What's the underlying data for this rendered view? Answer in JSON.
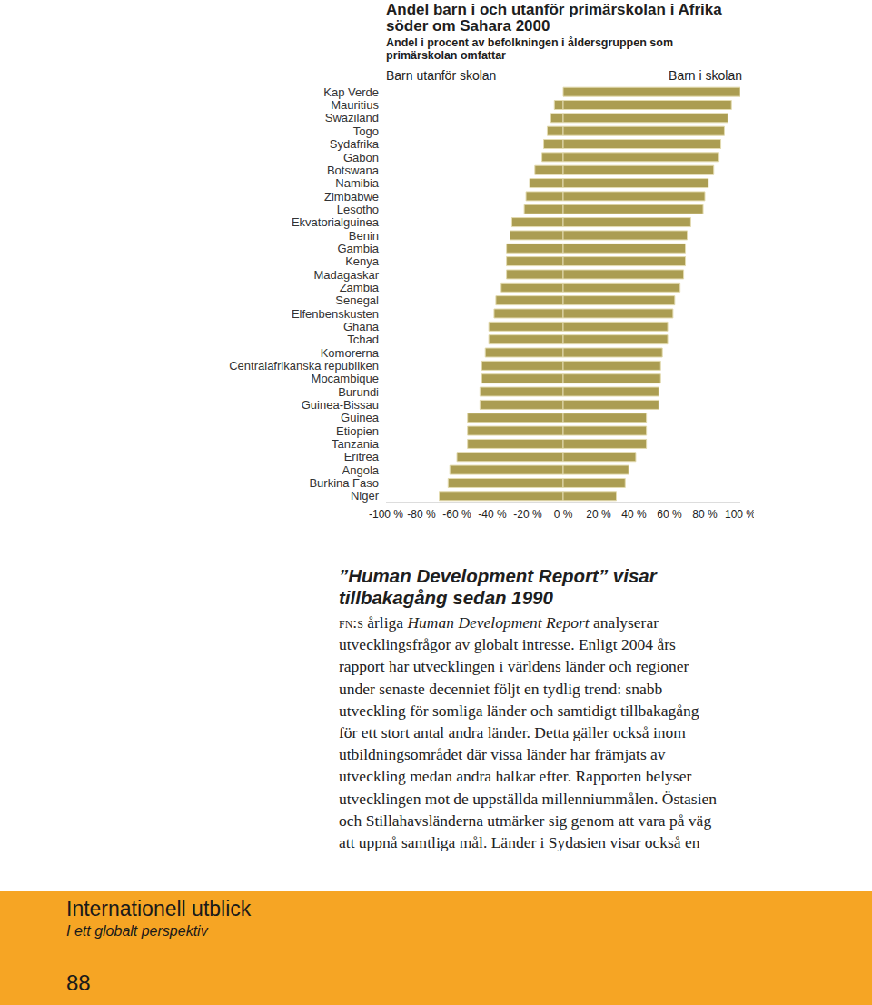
{
  "chart_data": {
    "type": "bar",
    "title": "Andel barn i och utanför primärskolan i Afrika söder om Sahara 2000",
    "subtitle": "Andel i procent av befolkningen i åldersgruppen som primärskolan omfattar",
    "orientation": "horizontal",
    "stacked": true,
    "grid": false,
    "categories": [
      "Kap Verde",
      "Mauritius",
      "Swaziland",
      "Togo",
      "Sydafrika",
      "Gabon",
      "Botswana",
      "Namibia",
      "Zimbabwe",
      "Lesotho",
      "Ekvatorialguinea",
      "Benin",
      "Gambia",
      "Kenya",
      "Madagaskar",
      "Zambia",
      "Senegal",
      "Elfenbenskusten",
      "Ghana",
      "Tchad",
      "Komorerna",
      "Centralafrikanska republiken",
      "Mocambique",
      "Burundi",
      "Guinea-Bissau",
      "Guinea",
      "Etiopien",
      "Tanzania",
      "Eritrea",
      "Angola",
      "Burkina Faso",
      "Niger"
    ],
    "series": [
      {
        "name": "Barn utanför skolan",
        "color": "#ab9d52",
        "values": [
          0,
          -5,
          -7,
          -9,
          -11,
          -12,
          -16,
          -19,
          -21,
          -22,
          -29,
          -30,
          -32,
          -32,
          -32,
          -35,
          -38,
          -39,
          -42,
          -42,
          -44,
          -46,
          -46,
          -47,
          -47,
          -54,
          -54,
          -54,
          -60,
          -64,
          -65,
          -70
        ]
      },
      {
        "name": "Barn i skolan",
        "color": "#ab9d52",
        "values": [
          100,
          95,
          93,
          91,
          89,
          88,
          85,
          82,
          80,
          79,
          72,
          70,
          69,
          69,
          68,
          66,
          63,
          62,
          59,
          59,
          56,
          55,
          55,
          54,
          54,
          47,
          47,
          47,
          41,
          37,
          35,
          30
        ]
      }
    ],
    "xlim": [
      -100,
      100
    ],
    "xticks": [
      {
        "value": -100,
        "label": "-100 %"
      },
      {
        "value": -80,
        "label": "-80 %"
      },
      {
        "value": -60,
        "label": "-60 %"
      },
      {
        "value": -40,
        "label": "-40 %"
      },
      {
        "value": -20,
        "label": "-20 %"
      },
      {
        "value": 0,
        "label": "0 %"
      },
      {
        "value": 20,
        "label": "20 %"
      },
      {
        "value": 40,
        "label": "40 %"
      },
      {
        "value": 60,
        "label": "60 %"
      },
      {
        "value": 80,
        "label": "80 %"
      },
      {
        "value": 100,
        "label": "100 %"
      }
    ]
  },
  "article": {
    "heading": [
      "”Human Development Report” visar",
      "tillbakagång sedan 1990"
    ],
    "lines": [
      [
        {
          "text": "fn:s",
          "font": "small-caps"
        },
        {
          "text": " årliga ",
          "font": "normal"
        },
        {
          "text": "Human Development Report",
          "font": "italic"
        },
        {
          "text": " analyserar",
          "font": "normal"
        }
      ],
      "utvecklingsfrågor av globalt intresse. Enligt 2004 års",
      "rapport har utvecklingen i världens länder och regioner",
      "under senaste decenniet följt en tydlig trend: snabb",
      "utveckling för somliga länder och samtidigt tillbakagång",
      "för ett stort antal andra länder. Detta gäller också inom",
      "utbildningsområdet där vissa länder har främjats av",
      "utveckling medan andra halkar efter. Rapporten belyser",
      "utvecklingen mot de uppställda millenniummålen. Östasien",
      "och Stillahavsländerna utmärker sig genom att vara på väg",
      "att uppnå samtliga mål. Länder i Sydasien visar också en"
    ]
  },
  "footer": {
    "title": "Internationell utblick",
    "subtitle": "I ett globalt perspektiv",
    "page": "88"
  }
}
